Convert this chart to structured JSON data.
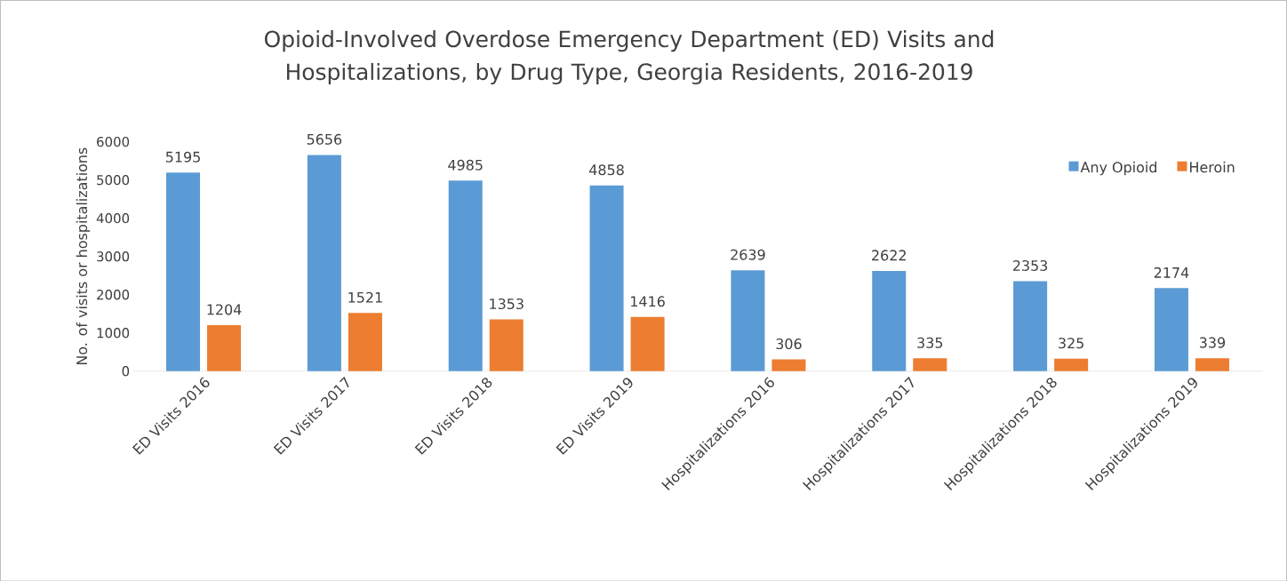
{
  "chart_data": {
    "type": "bar",
    "title": "Opioid-Involved Overdose Emergency Department (ED) Visits and Hospitalizations, by Drug Type, Georgia Residents, 2016-2019",
    "ylabel": "No. of visits or hospitalizations",
    "categories": [
      "ED Visits 2016",
      "ED Visits 2017",
      "ED Visits 2018",
      "ED Visits 2019",
      "Hospitalizations 2016",
      "Hospitalizations 2017",
      "Hospitalizations 2018",
      "Hospitalizations 2019"
    ],
    "series": [
      {
        "name": "Any Opioid",
        "color": "#5b9bd5",
        "values": [
          5195,
          5656,
          4985,
          4858,
          2639,
          2622,
          2353,
          2174
        ]
      },
      {
        "name": "Heroin",
        "color": "#ed7d31",
        "values": [
          1204,
          1521,
          1353,
          1416,
          306,
          335,
          325,
          339
        ]
      }
    ],
    "ylim": [
      0,
      6000
    ],
    "yticks": [
      0,
      1000,
      2000,
      3000,
      4000,
      5000,
      6000
    ],
    "data_labels": true,
    "legend": "top right",
    "grid": false
  }
}
